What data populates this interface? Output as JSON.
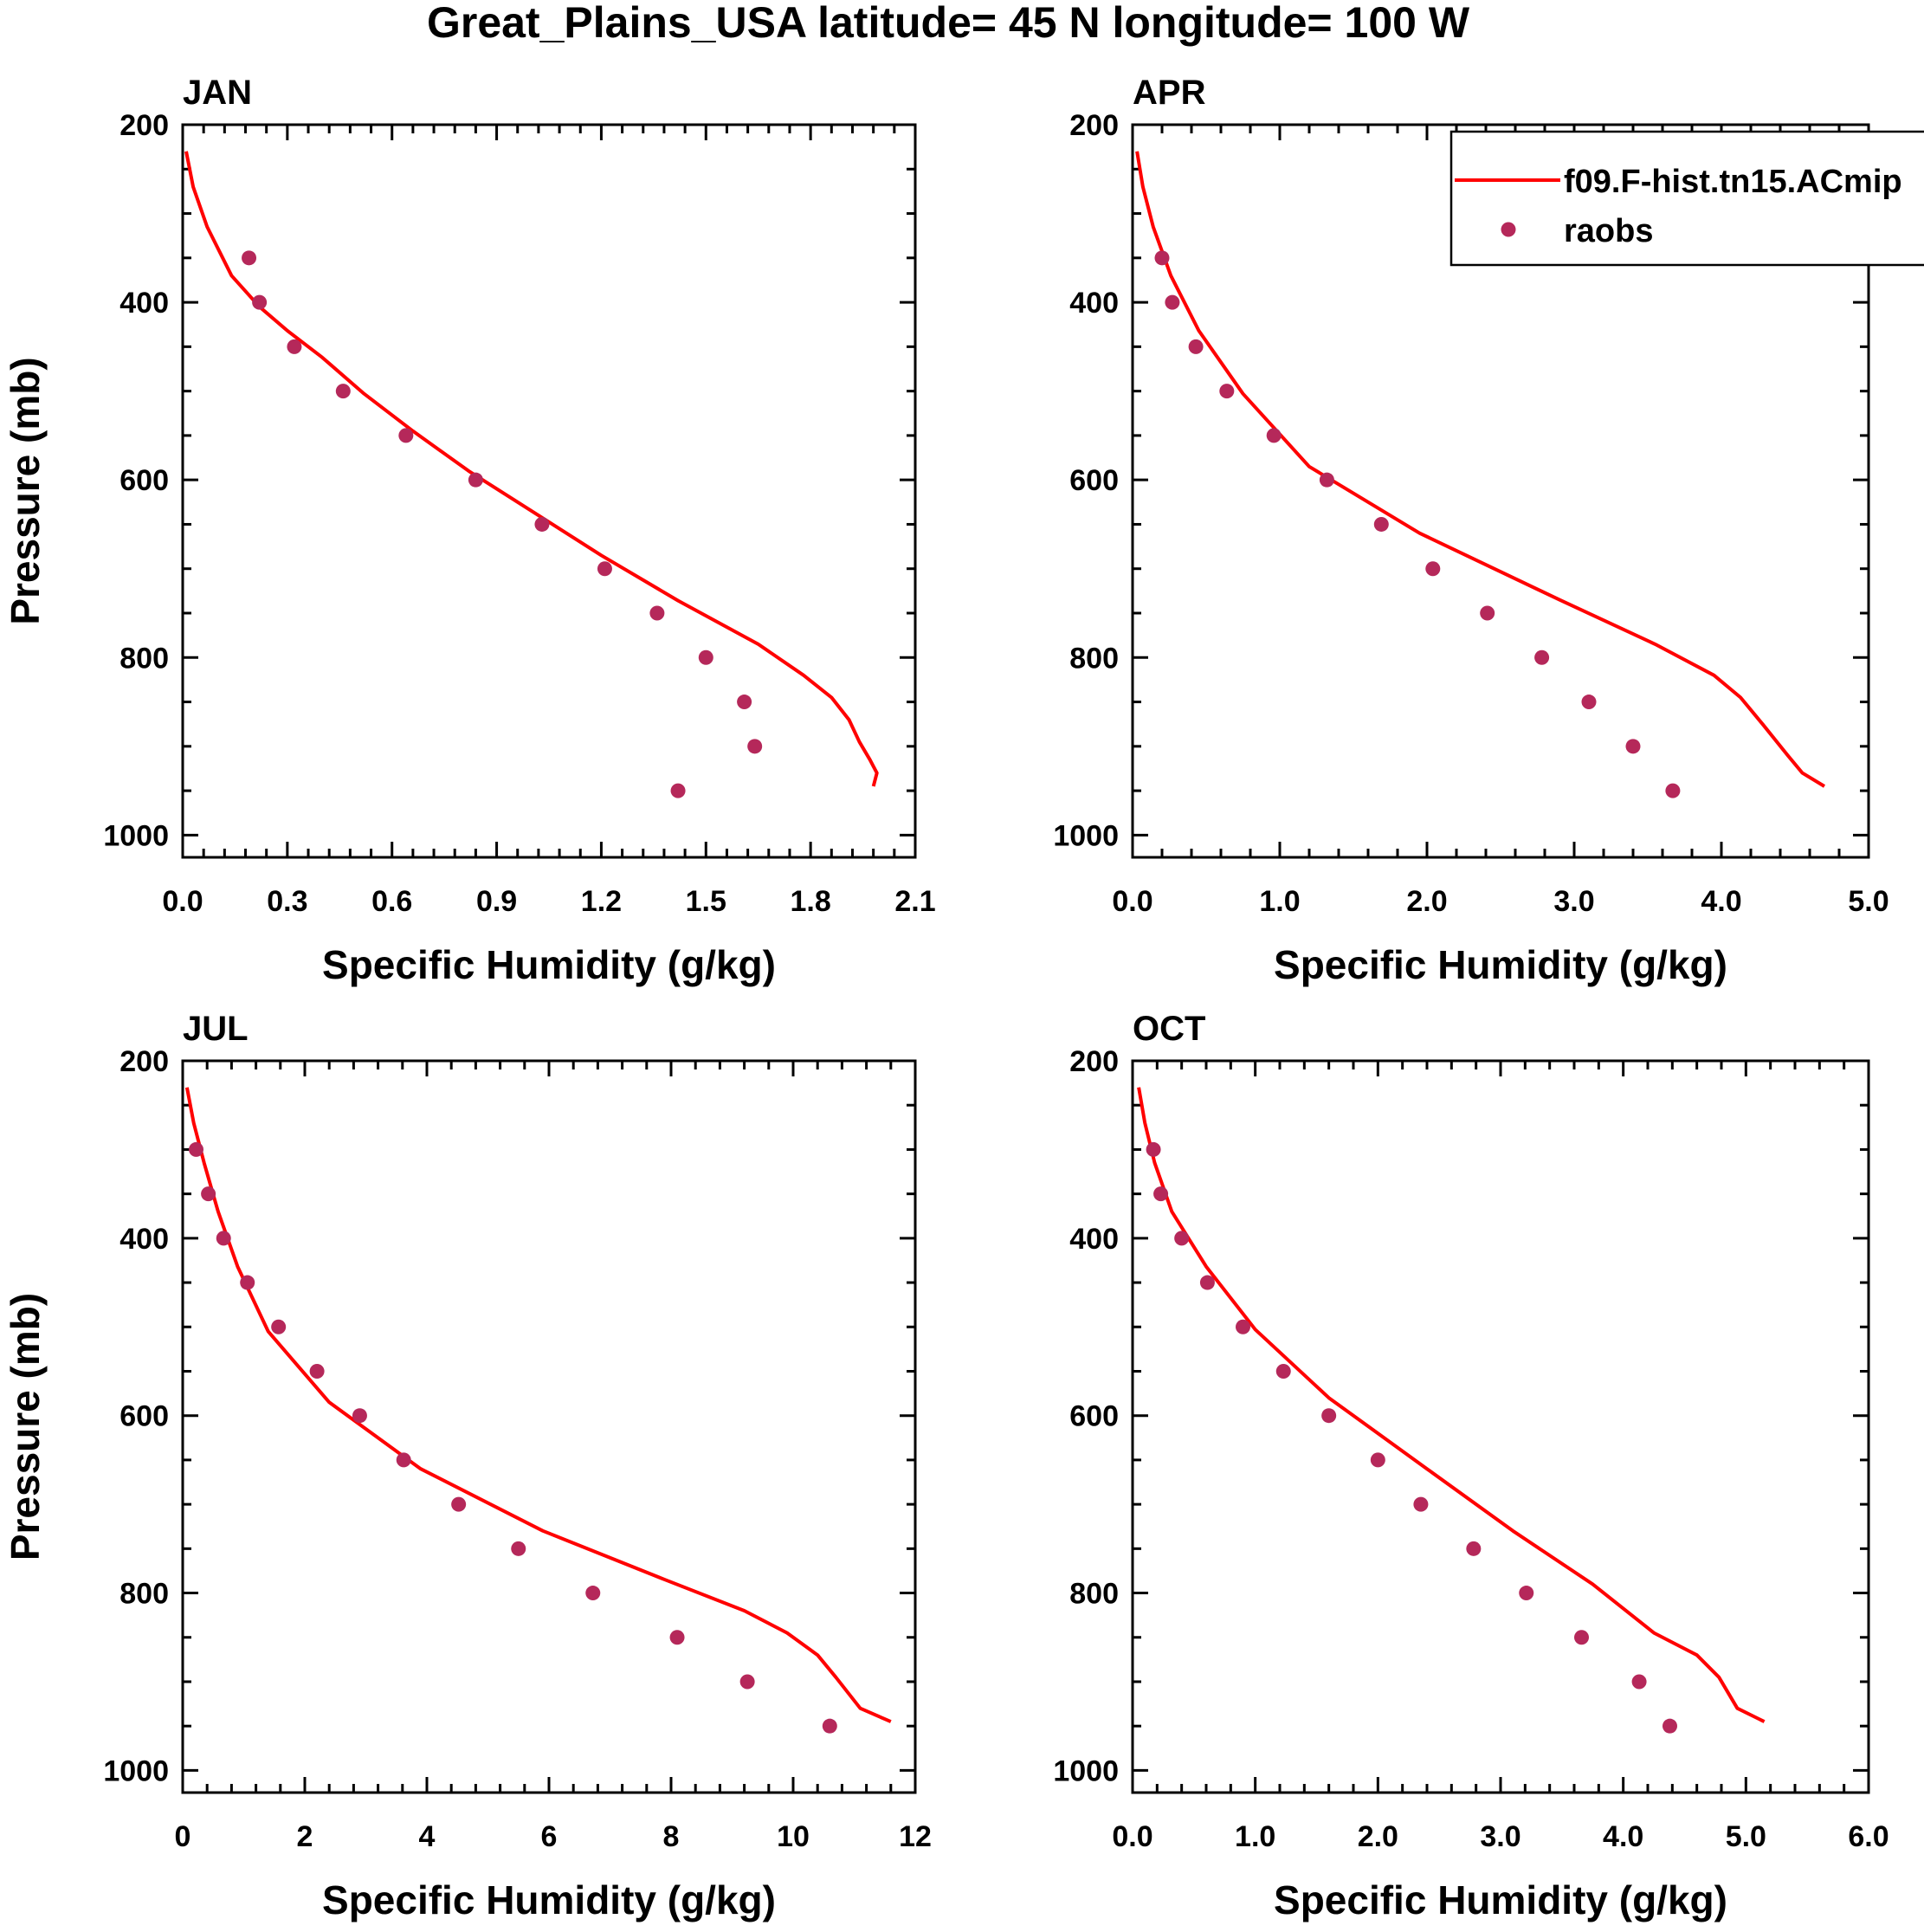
{
  "figure": {
    "title": "Great_Plains_USA  latitude= 45 N longitude= 100 W"
  },
  "colors": {
    "model_line": "#ff0000",
    "raobs_marker": "#b5285a",
    "axes": "#000000",
    "background": "#ffffff"
  },
  "legend": {
    "panel": "APR",
    "model_label": "f09.F-hist.tn15.ACmip",
    "obs_label": "raobs"
  },
  "chart_data": [
    {
      "type": "line",
      "title": "JAN",
      "xlabel": "Specific Humidity (g/kg)",
      "ylabel": "Pressure (mb)",
      "xlim": [
        0,
        2.1
      ],
      "ylim": [
        200,
        1025
      ],
      "y_inverted": true,
      "xticks": [
        0.0,
        0.3,
        0.6,
        0.9,
        1.2,
        1.5,
        1.8,
        2.1
      ],
      "xtick_labels": [
        "0.0",
        "0.3",
        "0.6",
        "0.9",
        "1.2",
        "1.5",
        "1.8",
        "2.1"
      ],
      "yticks": [
        200,
        400,
        600,
        800,
        1000
      ],
      "ytick_labels": [
        "200",
        "400",
        "600",
        "800",
        "1000"
      ],
      "series": [
        {
          "name": "f09.F-hist.tn15.ACmip",
          "kind": "line",
          "x": [
            0.01,
            0.03,
            0.07,
            0.14,
            0.22,
            0.3,
            0.4,
            0.52,
            0.66,
            0.82,
            1.0,
            1.2,
            1.42,
            1.65,
            1.78,
            1.86,
            1.91,
            1.94,
            1.97,
            1.99,
            1.98
          ],
          "y": [
            230,
            270,
            315,
            370,
            405,
            432,
            462,
            503,
            545,
            590,
            635,
            685,
            736,
            785,
            820,
            845,
            870,
            895,
            915,
            930,
            945
          ]
        },
        {
          "name": "raobs",
          "kind": "scatter",
          "x": [
            0.19,
            0.22,
            0.32,
            0.46,
            0.64,
            0.84,
            1.03,
            1.21,
            1.36,
            1.5,
            1.61,
            1.64,
            1.42
          ],
          "y": [
            350,
            400,
            450,
            500,
            550,
            600,
            650,
            700,
            750,
            800,
            850,
            900,
            950
          ]
        }
      ]
    },
    {
      "type": "line",
      "title": "APR",
      "xlabel": "Specific Humidity (g/kg)",
      "ylabel": "",
      "xlim": [
        0,
        5.0
      ],
      "ylim": [
        200,
        1025
      ],
      "y_inverted": true,
      "xticks": [
        0.0,
        1.0,
        2.0,
        3.0,
        4.0,
        5.0
      ],
      "xtick_labels": [
        "0.0",
        "1.0",
        "2.0",
        "3.0",
        "4.0",
        "5.0"
      ],
      "yticks": [
        200,
        400,
        600,
        800,
        1000
      ],
      "ytick_labels": [
        "200",
        "400",
        "600",
        "800",
        "1000"
      ],
      "series": [
        {
          "name": "f09.F-hist.tn15.ACmip",
          "kind": "line",
          "x": [
            0.03,
            0.07,
            0.14,
            0.26,
            0.45,
            0.75,
            1.2,
            1.95,
            2.9,
            3.55,
            3.95,
            4.13,
            4.28,
            4.45,
            4.55,
            4.7
          ],
          "y": [
            230,
            270,
            315,
            370,
            432,
            503,
            585,
            660,
            735,
            785,
            820,
            845,
            875,
            910,
            930,
            945
          ]
        },
        {
          "name": "raobs",
          "kind": "scatter",
          "x": [
            0.2,
            0.27,
            0.43,
            0.64,
            0.96,
            1.32,
            1.69,
            2.04,
            2.41,
            2.78,
            3.1,
            3.4,
            3.67
          ],
          "y": [
            350,
            400,
            450,
            500,
            550,
            600,
            650,
            700,
            750,
            800,
            850,
            900,
            950
          ]
        }
      ]
    },
    {
      "type": "line",
      "title": "JUL",
      "xlabel": "Specific Humidity (g/kg)",
      "ylabel": "Pressure (mb)",
      "xlim": [
        0,
        12
      ],
      "ylim": [
        200,
        1025
      ],
      "y_inverted": true,
      "xticks": [
        0,
        2,
        4,
        6,
        8,
        10,
        12
      ],
      "xtick_labels": [
        "0",
        "2",
        "4",
        "6",
        "8",
        "10",
        "12"
      ],
      "yticks": [
        200,
        400,
        600,
        800,
        1000
      ],
      "ytick_labels": [
        "200",
        "400",
        "600",
        "800",
        "1000"
      ],
      "series": [
        {
          "name": "f09.F-hist.tn15.ACmip",
          "kind": "line",
          "x": [
            0.07,
            0.18,
            0.35,
            0.58,
            0.9,
            1.4,
            2.4,
            3.9,
            5.9,
            7.9,
            9.2,
            9.9,
            10.4,
            10.7,
            11.1,
            11.6
          ],
          "y": [
            230,
            270,
            315,
            370,
            432,
            505,
            585,
            660,
            730,
            785,
            820,
            845,
            870,
            895,
            930,
            945
          ]
        },
        {
          "name": "raobs",
          "kind": "scatter",
          "x": [
            0.22,
            0.42,
            0.67,
            1.06,
            1.57,
            2.2,
            2.9,
            3.62,
            4.52,
            5.5,
            6.72,
            8.1,
            9.25,
            10.6
          ],
          "y": [
            300,
            350,
            400,
            450,
            500,
            550,
            600,
            650,
            700,
            750,
            800,
            850,
            900,
            950
          ]
        }
      ]
    },
    {
      "type": "line",
      "title": "OCT",
      "xlabel": "Specific Humidity (g/kg)",
      "ylabel": "",
      "xlim": [
        0,
        6.0
      ],
      "ylim": [
        200,
        1025
      ],
      "y_inverted": true,
      "xticks": [
        0.0,
        1.0,
        2.0,
        3.0,
        4.0,
        5.0,
        6.0
      ],
      "xtick_labels": [
        "0.0",
        "1.0",
        "2.0",
        "3.0",
        "4.0",
        "5.0",
        "6.0"
      ],
      "yticks": [
        200,
        400,
        600,
        800,
        1000
      ],
      "ytick_labels": [
        "200",
        "400",
        "600",
        "800",
        "1000"
      ],
      "series": [
        {
          "name": "f09.F-hist.tn15.ACmip",
          "kind": "line",
          "x": [
            0.05,
            0.1,
            0.18,
            0.32,
            0.6,
            1.0,
            1.6,
            2.4,
            3.1,
            3.75,
            4.25,
            4.6,
            4.78,
            4.93,
            5.15
          ],
          "y": [
            230,
            270,
            315,
            370,
            432,
            503,
            580,
            660,
            730,
            790,
            845,
            870,
            895,
            930,
            945
          ]
        },
        {
          "name": "raobs",
          "kind": "scatter",
          "x": [
            0.17,
            0.23,
            0.4,
            0.61,
            0.9,
            1.23,
            1.6,
            2.0,
            2.35,
            2.78,
            3.21,
            3.66,
            4.13,
            4.38
          ],
          "y": [
            300,
            350,
            400,
            450,
            500,
            550,
            600,
            650,
            700,
            750,
            800,
            850,
            900,
            950
          ]
        }
      ]
    }
  ]
}
